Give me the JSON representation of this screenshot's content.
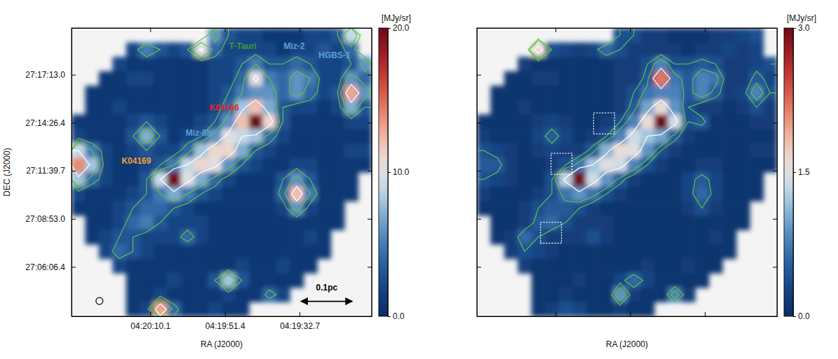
{
  "chart_data": [
    {
      "type": "heatmap",
      "xlabel": "RA (J2000)",
      "ylabel": "DEC (J2000)",
      "xlim": [
        65.1242,
        64.8111
      ],
      "ylim": [
        27.0542,
        27.3319
      ],
      "xticks": [
        {
          "value": 65.0421,
          "label": "04:20:10.1"
        },
        {
          "value": 64.9642,
          "label": "04:19:51.4"
        },
        {
          "value": 64.8863,
          "label": "04:19:32.7"
        }
      ],
      "yticks": [
        {
          "value": 27.1018,
          "label": "27:06:06.4"
        },
        {
          "value": 27.1481,
          "label": "27:08:53.0"
        },
        {
          "value": 27.1944,
          "label": "27:11:39.7"
        },
        {
          "value": 27.2407,
          "label": "27:14:26.4"
        },
        {
          "value": 27.2869,
          "label": "27:17:13.0"
        }
      ],
      "colorbar": {
        "label": "[MJy/sr]",
        "range": [
          0,
          20
        ],
        "ticks": [
          {
            "value": 0,
            "label": "0.0"
          },
          {
            "value": 10,
            "label": "10.0"
          },
          {
            "value": 20,
            "label": "20.0"
          }
        ]
      },
      "contour_levels": [
        3,
        5,
        9
      ],
      "annotations": [
        "T-Tauri",
        "Miz-2",
        "HGBS-1",
        "K04166",
        "Miz-8b",
        "K04169"
      ],
      "scale_bar": "0.1pc",
      "cells": [
        [
          null,
          null,
          null,
          null,
          null,
          null,
          null,
          null,
          null,
          null,
          6,
          3,
          2,
          2,
          1,
          1,
          1,
          2,
          2,
          3,
          9,
          null
        ],
        [
          null,
          null,
          null,
          null,
          2,
          5,
          3,
          2,
          3,
          10,
          4,
          2,
          2,
          2,
          2,
          1,
          2,
          2,
          3,
          2,
          4,
          null
        ],
        [
          null,
          null,
          null,
          2,
          1,
          1,
          1,
          1,
          1,
          1,
          2,
          2,
          3,
          5,
          3,
          3,
          4,
          3,
          2,
          2,
          3,
          6
        ],
        [
          null,
          null,
          1,
          1,
          2,
          2,
          1,
          1,
          1,
          1,
          2,
          2,
          4,
          10,
          5,
          4,
          6,
          5,
          2,
          2,
          6,
          4
        ],
        [
          null,
          1,
          1,
          1,
          1,
          1,
          1,
          1,
          1,
          1,
          2,
          3,
          5,
          6,
          6,
          4,
          6,
          4,
          2,
          3,
          13,
          6
        ],
        [
          null,
          1,
          1,
          2,
          1,
          1,
          1,
          1,
          1,
          1,
          2,
          4,
          8,
          12,
          7,
          3,
          2,
          2,
          1,
          2,
          7,
          3
        ],
        [
          1,
          1,
          1,
          1,
          2,
          3,
          2,
          1,
          1,
          2,
          3,
          6,
          12,
          20,
          11,
          3,
          1,
          1,
          1,
          1,
          2,
          2
        ],
        [
          2,
          1,
          1,
          1,
          3,
          7,
          3,
          1,
          2,
          3,
          6,
          10,
          9,
          8,
          4,
          2,
          1,
          1,
          1,
          1,
          1,
          1
        ],
        [
          9,
          5,
          2,
          1,
          2,
          3,
          2,
          2,
          4,
          8,
          11,
          11,
          7,
          3,
          2,
          1,
          1,
          1,
          1,
          1,
          2,
          2
        ],
        [
          14,
          8,
          2,
          1,
          1,
          2,
          3,
          5,
          9,
          11,
          10,
          6,
          3,
          2,
          1,
          1,
          2,
          2,
          1,
          1,
          1,
          1
        ],
        [
          8,
          4,
          2,
          1,
          1,
          3,
          9,
          20,
          10,
          7,
          4,
          2,
          1,
          1,
          1,
          3,
          6,
          3,
          1,
          1,
          1,
          null
        ],
        [
          2,
          1,
          1,
          1,
          2,
          3,
          5,
          7,
          5,
          3,
          2,
          1,
          1,
          1,
          1,
          4,
          12,
          5,
          1,
          1,
          1,
          null
        ],
        [
          1,
          1,
          1,
          2,
          3,
          4,
          4,
          3,
          2,
          1,
          1,
          1,
          1,
          1,
          1,
          2,
          6,
          2,
          1,
          1,
          null,
          null
        ],
        [
          null,
          1,
          1,
          2,
          4,
          5,
          3,
          2,
          2,
          2,
          1,
          1,
          1,
          1,
          1,
          1,
          1,
          1,
          1,
          1,
          null,
          null
        ],
        [
          null,
          1,
          2,
          3,
          3,
          2,
          2,
          2,
          4,
          2,
          1,
          1,
          1,
          1,
          1,
          1,
          1,
          2,
          1,
          null,
          null,
          null
        ],
        [
          null,
          null,
          2,
          4,
          3,
          2,
          1,
          1,
          1,
          1,
          1,
          1,
          1,
          1,
          1,
          1,
          1,
          1,
          1,
          null,
          null,
          null
        ],
        [
          null,
          null,
          null,
          2,
          1,
          1,
          1,
          1,
          1,
          1,
          1,
          1,
          2,
          1,
          1,
          2,
          1,
          1,
          null,
          null,
          null,
          null
        ],
        [
          null,
          null,
          null,
          null,
          1,
          1,
          1,
          2,
          1,
          1,
          3,
          8,
          3,
          1,
          1,
          1,
          1,
          null,
          null,
          null,
          null,
          null
        ],
        [
          null,
          null,
          null,
          null,
          1,
          1,
          2,
          1,
          1,
          1,
          1,
          2,
          1,
          1,
          4,
          2,
          null,
          null,
          null,
          null,
          null,
          null
        ],
        [
          null,
          null,
          null,
          null,
          1,
          2,
          13,
          4,
          1,
          1,
          2,
          1,
          1,
          null,
          null,
          null,
          null,
          null,
          null,
          null,
          null,
          null
        ]
      ]
    },
    {
      "type": "heatmap",
      "xlabel": "RA (J2000)",
      "tick_labels": false,
      "xlim": [
        65.1242,
        64.8111
      ],
      "ylim": [
        27.0542,
        27.3319
      ],
      "xticks": [
        65.0421,
        64.9642,
        64.8863
      ],
      "yticks": [
        27.1018,
        27.1481,
        27.1944,
        27.2407,
        27.2869
      ],
      "colorbar": {
        "label": "[MJy/sr]",
        "range": [
          0,
          3
        ],
        "ticks": [
          {
            "value": 0,
            "label": "0.0"
          },
          1.5,
          {
            "value": 3,
            "label": "3.0"
          }
        ]
      },
      "contour_levels": [
        0.4,
        0.6,
        1.2
      ],
      "cells": [
        [
          null,
          null,
          null,
          null,
          null,
          null,
          null,
          null,
          null,
          null,
          0.4,
          0.4,
          0.2,
          0.2,
          0.1,
          0.1,
          0.1,
          0.2,
          0.2,
          0.3,
          0.4,
          null
        ],
        [
          null,
          null,
          null,
          null,
          1.6,
          0.4,
          0.3,
          0.2,
          0.3,
          0.6,
          0.4,
          0.2,
          0.2,
          0.2,
          0.2,
          0.1,
          0.2,
          0.2,
          0.3,
          0.2,
          0.3,
          null
        ],
        [
          null,
          null,
          null,
          0.2,
          0.1,
          0.1,
          0.1,
          0.1,
          0.1,
          0.1,
          0.2,
          0.2,
          0.4,
          0.8,
          0.4,
          0.4,
          0.5,
          0.4,
          0.2,
          0.2,
          0.3,
          0.4
        ],
        [
          null,
          null,
          0.1,
          0.1,
          0.2,
          0.2,
          0.1,
          0.1,
          0.1,
          0.1,
          0.2,
          0.2,
          0.5,
          2.2,
          0.7,
          0.5,
          0.8,
          0.7,
          0.2,
          0.2,
          0.5,
          0.3
        ],
        [
          null,
          0.1,
          0.1,
          0.1,
          0.1,
          0.1,
          0.1,
          0.1,
          0.1,
          0.1,
          0.2,
          0.4,
          0.7,
          0.8,
          0.8,
          0.5,
          0.8,
          0.5,
          0.2,
          0.3,
          0.8,
          0.4
        ],
        [
          null,
          0.1,
          0.1,
          0.2,
          0.1,
          0.1,
          0.1,
          0.1,
          0.1,
          0.1,
          0.2,
          0.5,
          1.0,
          1.6,
          0.9,
          0.4,
          0.2,
          0.2,
          0.1,
          0.2,
          0.4,
          0.2
        ],
        [
          0.1,
          0.1,
          0.1,
          0.1,
          0.2,
          0.3,
          0.2,
          0.1,
          0.1,
          0.2,
          0.4,
          0.8,
          1.6,
          3.0,
          1.4,
          0.4,
          0.5,
          0.1,
          0.1,
          0.1,
          0.2,
          0.2
        ],
        [
          0.2,
          0.1,
          0.1,
          0.1,
          0.3,
          0.5,
          0.3,
          0.1,
          0.2,
          0.4,
          0.8,
          1.4,
          1.2,
          1.0,
          0.5,
          0.2,
          0.1,
          0.1,
          0.1,
          0.1,
          0.1,
          0.1
        ],
        [
          0.4,
          0.3,
          0.2,
          0.1,
          0.2,
          0.3,
          0.2,
          0.2,
          0.5,
          1.1,
          1.6,
          1.5,
          0.9,
          0.4,
          0.2,
          0.1,
          0.1,
          0.1,
          0.1,
          0.1,
          0.2,
          0.2
        ],
        [
          0.5,
          0.5,
          0.2,
          0.1,
          0.1,
          0.2,
          0.4,
          0.7,
          1.2,
          1.5,
          1.4,
          0.8,
          0.4,
          0.2,
          0.1,
          0.1,
          0.2,
          0.2,
          0.1,
          0.1,
          0.1,
          0.1
        ],
        [
          0.4,
          0.3,
          0.2,
          0.1,
          0.1,
          0.4,
          1.3,
          3.0,
          1.4,
          0.9,
          0.5,
          0.2,
          0.1,
          0.1,
          0.1,
          0.3,
          0.5,
          0.3,
          0.1,
          0.1,
          0.1,
          null
        ],
        [
          0.2,
          0.1,
          0.1,
          0.1,
          0.2,
          0.4,
          0.7,
          0.9,
          0.7,
          0.4,
          0.2,
          0.1,
          0.1,
          0.1,
          0.1,
          0.3,
          0.6,
          0.3,
          0.1,
          0.1,
          0.1,
          null
        ],
        [
          0.1,
          0.1,
          0.1,
          0.2,
          0.4,
          0.5,
          0.5,
          0.4,
          0.2,
          0.1,
          0.1,
          0.1,
          0.1,
          0.1,
          0.1,
          0.2,
          0.4,
          0.2,
          0.1,
          0.1,
          null,
          null
        ],
        [
          null,
          0.1,
          0.1,
          0.2,
          0.5,
          0.6,
          0.4,
          0.2,
          0.2,
          0.2,
          0.1,
          0.1,
          0.1,
          0.1,
          0.1,
          0.1,
          0.1,
          0.1,
          0.1,
          0.1,
          null,
          null
        ],
        [
          null,
          0.1,
          0.2,
          0.6,
          0.4,
          0.2,
          0.2,
          0.2,
          0.4,
          0.2,
          0.1,
          0.1,
          0.1,
          0.1,
          0.1,
          0.1,
          0.1,
          0.2,
          0.1,
          null,
          null,
          null
        ],
        [
          null,
          null,
          0.2,
          0.4,
          0.3,
          0.2,
          0.1,
          0.1,
          0.1,
          0.1,
          0.1,
          0.1,
          0.1,
          0.1,
          0.1,
          0.1,
          0.1,
          0.1,
          0.1,
          null,
          null,
          null
        ],
        [
          null,
          null,
          null,
          0.2,
          0.1,
          0.1,
          0.1,
          0.1,
          0.1,
          0.1,
          0.1,
          0.1,
          0.2,
          0.1,
          0.1,
          0.2,
          0.1,
          0.1,
          null,
          null,
          null,
          null
        ],
        [
          null,
          null,
          null,
          null,
          0.1,
          0.1,
          0.1,
          0.2,
          0.1,
          0.1,
          0.3,
          0.6,
          0.3,
          0.1,
          0.1,
          0.1,
          0.1,
          null,
          null,
          null,
          null,
          null
        ],
        [
          null,
          null,
          null,
          null,
          0.1,
          0.1,
          0.2,
          0.1,
          0.1,
          0.1,
          0.9,
          0.2,
          0.1,
          0.1,
          0.8,
          0.2,
          null,
          null,
          null,
          null,
          null,
          null
        ],
        [
          null,
          null,
          null,
          null,
          0.1,
          0.2,
          0.4,
          0.3,
          0.1,
          0.1,
          0.2,
          0.1,
          0.1,
          null,
          null,
          null,
          null,
          null,
          null,
          null,
          null,
          null
        ]
      ]
    }
  ]
}
